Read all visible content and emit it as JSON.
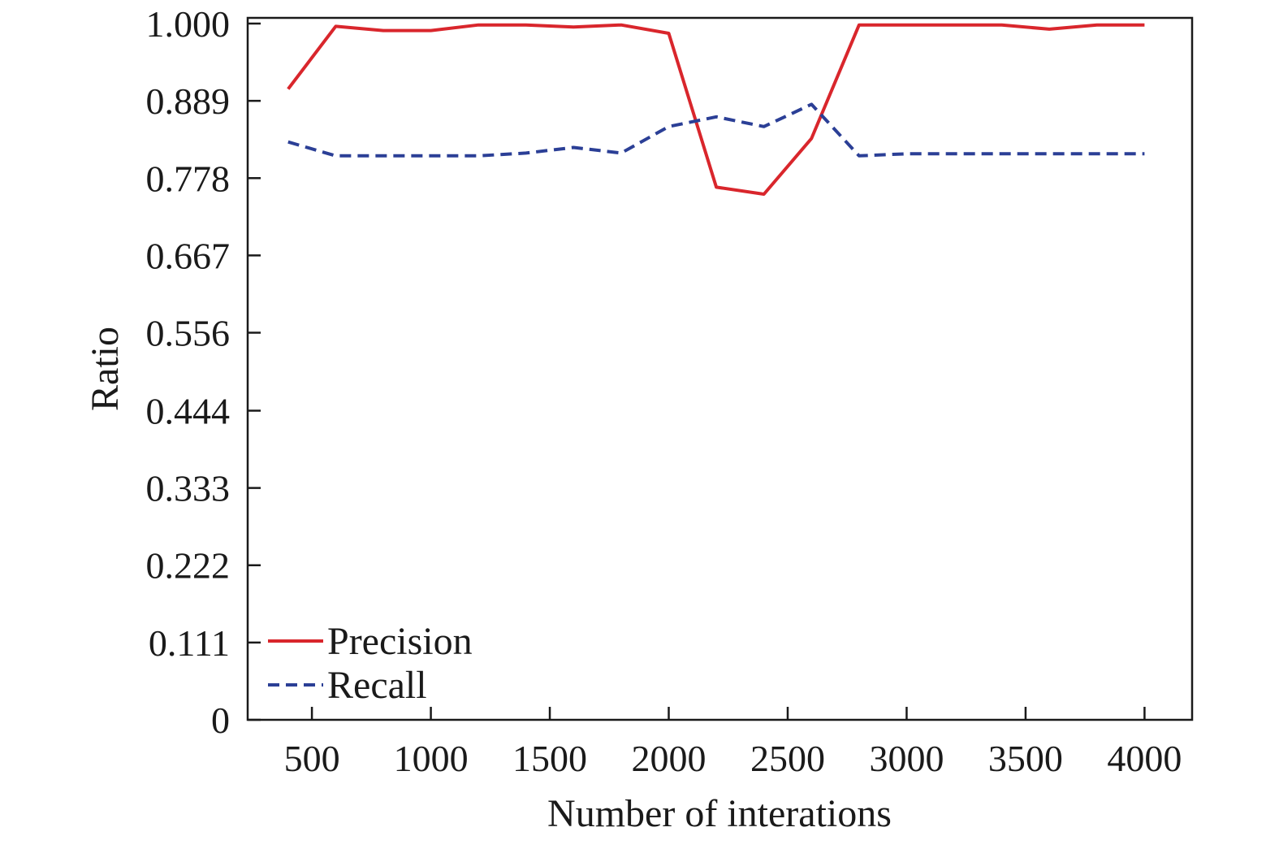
{
  "chart_data": {
    "type": "line",
    "xlabel": "Number of interations",
    "ylabel": "Ratio",
    "xlim": [
      230,
      4200
    ],
    "ylim": [
      0,
      1.0
    ],
    "x_ticks": [
      500,
      1000,
      1500,
      2000,
      2500,
      3000,
      3500,
      4000
    ],
    "x_tick_labels": [
      "500",
      "1000",
      "1500",
      "2000",
      "2500",
      "3000",
      "3500",
      "4000"
    ],
    "y_ticks": [
      0,
      0.111,
      0.222,
      0.333,
      0.444,
      0.556,
      0.667,
      0.778,
      0.889,
      1.0
    ],
    "y_tick_labels": [
      "0",
      "0.111",
      "0.222",
      "0.333",
      "0.444",
      "0.556",
      "0.667",
      "0.778",
      "0.889",
      "1.000"
    ],
    "grid": false,
    "legend_position": "bottom-left",
    "series": [
      {
        "name": "Precision",
        "color": "#d9262c",
        "style": "solid",
        "x": [
          400,
          600,
          800,
          1000,
          1200,
          1400,
          1600,
          1800,
          2000,
          2200,
          2400,
          2600,
          2800,
          3000,
          3200,
          3400,
          3600,
          3800,
          4000
        ],
        "y": [
          0.906,
          0.996,
          0.99,
          0.99,
          0.998,
          0.998,
          0.995,
          0.998,
          0.986,
          0.765,
          0.755,
          0.835,
          0.998,
          0.998,
          0.998,
          0.998,
          0.992,
          0.998,
          0.998
        ]
      },
      {
        "name": "Recall",
        "color": "#2b3f96",
        "style": "dashed",
        "x": [
          400,
          600,
          800,
          1000,
          1200,
          1400,
          1600,
          1800,
          2000,
          2200,
          2400,
          2600,
          2800,
          3000,
          3200,
          3400,
          3600,
          3800,
          4000
        ],
        "y": [
          0.83,
          0.81,
          0.81,
          0.81,
          0.81,
          0.814,
          0.822,
          0.814,
          0.852,
          0.866,
          0.852,
          0.884,
          0.81,
          0.813,
          0.813,
          0.813,
          0.813,
          0.813,
          0.813
        ]
      }
    ]
  }
}
